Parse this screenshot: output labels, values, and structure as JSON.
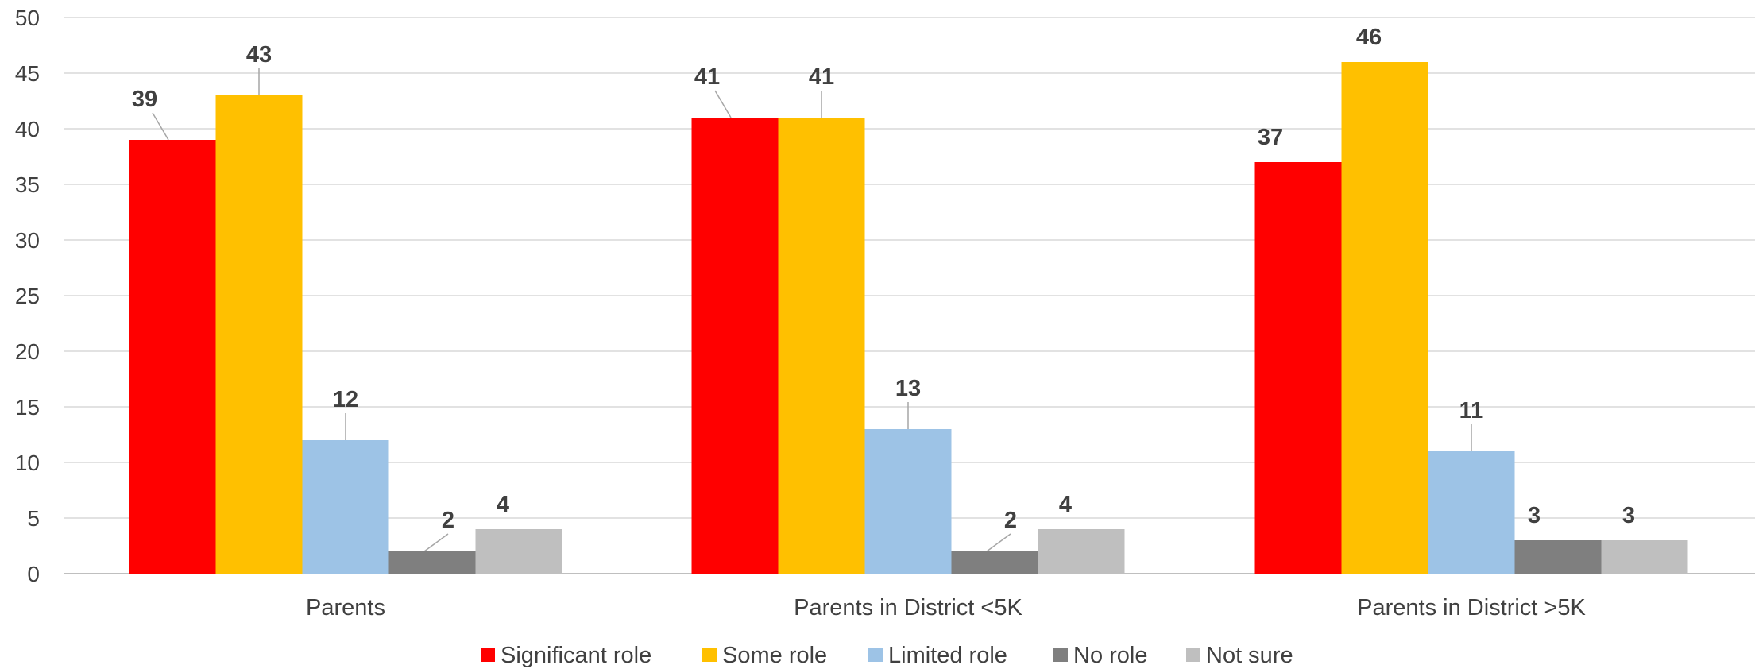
{
  "chart_data": {
    "type": "bar",
    "categories": [
      "Parents",
      "Parents in District <5K",
      "Parents in District >5K"
    ],
    "series": [
      {
        "name": "Significant role",
        "color": "#ff0000",
        "values": [
          39,
          41,
          37
        ]
      },
      {
        "name": "Some role",
        "color": "#ffc000",
        "values": [
          43,
          41,
          46
        ]
      },
      {
        "name": "Limited role",
        "color": "#9dc3e6",
        "values": [
          12,
          13,
          11
        ]
      },
      {
        "name": "No role",
        "color": "#7f7f7f",
        "values": [
          2,
          2,
          3
        ]
      },
      {
        "name": "Not sure",
        "color": "#bfbfbf",
        "values": [
          4,
          4,
          3
        ]
      }
    ],
    "ylim": [
      0,
      50
    ],
    "yticks": [
      0,
      5,
      10,
      15,
      20,
      25,
      30,
      35,
      40,
      45,
      50
    ],
    "grid": true,
    "legend_position": "bottom",
    "data_labels": true
  }
}
